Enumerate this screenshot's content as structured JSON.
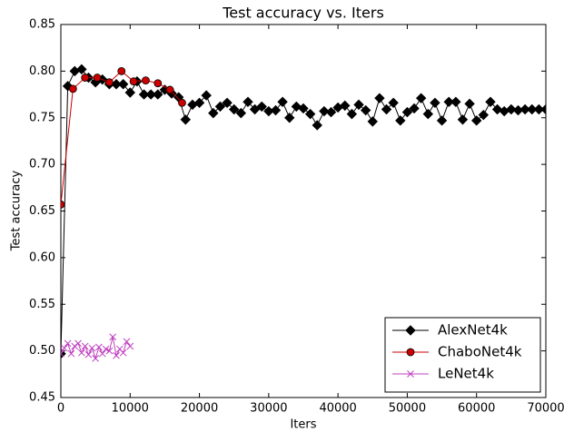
{
  "chart_data": {
    "type": "line",
    "title": "Test accuracy  vs. Iters",
    "x_label": "Iters",
    "y_label": "Test accuracy",
    "xlim": [
      0,
      70000
    ],
    "ylim": [
      0.45,
      0.85
    ],
    "xticks": [
      0,
      10000,
      20000,
      30000,
      40000,
      50000,
      60000,
      70000
    ],
    "yticks": [
      {
        "value": 0.45,
        "label": "0.45"
      },
      {
        "value": 0.5,
        "label": "0.50"
      },
      {
        "value": 0.55,
        "label": "0.55"
      },
      {
        "value": 0.6,
        "label": "0.60"
      },
      {
        "value": 0.65,
        "label": "0.65"
      },
      {
        "value": 0.7,
        "label": "0.70"
      },
      {
        "value": 0.75,
        "label": "0.75"
      },
      {
        "value": 0.8,
        "label": "0.80"
      },
      {
        "value": 0.85,
        "label": "0.85"
      }
    ],
    "grid": false,
    "legend": "lower right",
    "series": [
      {
        "name": "AlexNet4k",
        "color": "#000000",
        "marker": "diamond",
        "x": [
          0,
          1000,
          2000,
          3000,
          4000,
          5000,
          6000,
          7000,
          8000,
          9000,
          10000,
          11000,
          12000,
          13000,
          14000,
          15000,
          16000,
          17000,
          18000,
          19000,
          20000,
          21000,
          22000,
          23000,
          24000,
          25000,
          26000,
          27000,
          28000,
          29000,
          30000,
          31000,
          32000,
          33000,
          34000,
          35000,
          36000,
          37000,
          38000,
          39000,
          40000,
          41000,
          42000,
          43000,
          44000,
          45000,
          46000,
          47000,
          48000,
          49000,
          50000,
          51000,
          52000,
          53000,
          54000,
          55000,
          56000,
          57000,
          58000,
          59000,
          60000,
          61000,
          62000,
          63000,
          64000,
          65000,
          66000,
          67000,
          68000,
          69000,
          70000
        ],
        "values": [
          0.497,
          0.784,
          0.8,
          0.802,
          0.793,
          0.788,
          0.791,
          0.786,
          0.786,
          0.786,
          0.777,
          0.789,
          0.775,
          0.775,
          0.775,
          0.78,
          0.776,
          0.772,
          0.748,
          0.764,
          0.766,
          0.774,
          0.755,
          0.762,
          0.766,
          0.759,
          0.755,
          0.767,
          0.759,
          0.762,
          0.757,
          0.758,
          0.767,
          0.75,
          0.762,
          0.76,
          0.754,
          0.742,
          0.757,
          0.756,
          0.761,
          0.763,
          0.754,
          0.764,
          0.758,
          0.746,
          0.771,
          0.759,
          0.766,
          0.747,
          0.756,
          0.76,
          0.771,
          0.754,
          0.766,
          0.747,
          0.767,
          0.767,
          0.748,
          0.765,
          0.747,
          0.753,
          0.767,
          0.759,
          0.757,
          0.759,
          0.758,
          0.759,
          0.759,
          0.759,
          0.759
        ]
      },
      {
        "name": "ChaboNet4k",
        "color": "#cc0000",
        "marker": "circle",
        "x": [
          0,
          1750,
          3500,
          5250,
          7000,
          8750,
          10500,
          12250,
          14000,
          15750,
          17500
        ],
        "values": [
          0.657,
          0.781,
          0.793,
          0.793,
          0.788,
          0.8,
          0.789,
          0.79,
          0.787,
          0.78,
          0.766
        ]
      },
      {
        "name": "LeNet4k",
        "color": "#bf40bf",
        "marker": "x",
        "x": [
          0,
          500,
          1000,
          1500,
          2000,
          2500,
          3000,
          3500,
          4000,
          4500,
          5000,
          5500,
          6000,
          6500,
          7000,
          7500,
          8000,
          8500,
          9000,
          9500,
          10000
        ],
        "values": [
          0.497,
          0.503,
          0.508,
          0.497,
          0.505,
          0.508,
          0.498,
          0.505,
          0.496,
          0.503,
          0.492,
          0.504,
          0.497,
          0.502,
          0.5,
          0.515,
          0.495,
          0.502,
          0.498,
          0.51,
          0.505
        ]
      }
    ]
  }
}
